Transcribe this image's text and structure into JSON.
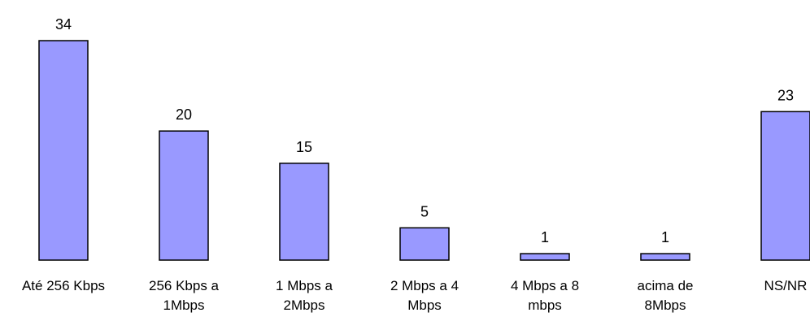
{
  "chart_data": {
    "type": "bar",
    "categories": [
      [
        "Até 256 Kbps"
      ],
      [
        "256 Kbps a",
        "1Mbps"
      ],
      [
        "1 Mbps a",
        "2Mbps"
      ],
      [
        "2 Mbps a 4",
        "Mbps"
      ],
      [
        "4 Mbps a 8",
        "mbps"
      ],
      [
        "acima de",
        "8Mbps"
      ],
      [
        "NS/NR"
      ]
    ],
    "values": [
      34,
      20,
      15,
      5,
      1,
      1,
      23
    ],
    "title": "",
    "xlabel": "",
    "ylabel": "",
    "ylim": [
      0,
      34
    ],
    "grid": false,
    "colors": {
      "bar_fill": "#9999ff",
      "bar_stroke": "#000000",
      "text": "#000000"
    }
  }
}
